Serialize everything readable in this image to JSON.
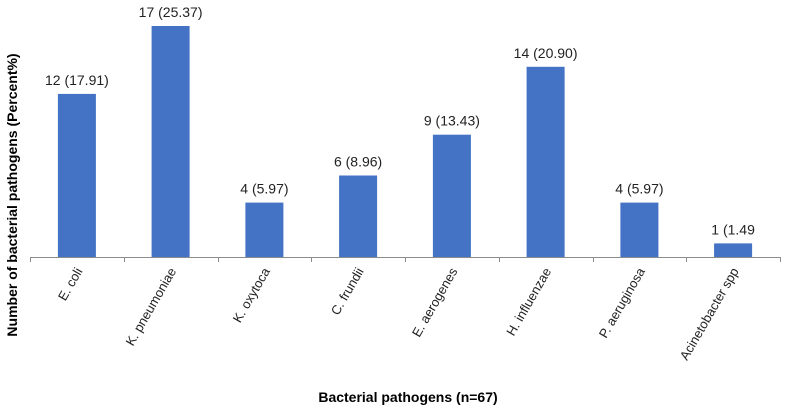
{
  "chart_data": {
    "type": "bar",
    "title": "",
    "xlabel": "Bacterial pathogens (n=67)",
    "ylabel": "Number of bacterial pathogens (Percent%)",
    "categories": [
      "E. coli",
      "K. pneumoniae",
      "K. oxytoca",
      "C. frundii",
      "E. aerogenes",
      "H. influenzae",
      "P. aeruginosa",
      "Acinetobacter spp"
    ],
    "values": [
      12,
      17,
      4,
      6,
      9,
      14,
      4,
      1
    ],
    "data_labels": [
      "12 (17.91)",
      "17 (25.37)",
      "4 (5.97)",
      "6 (8.96)",
      "9 (13.43)",
      "14 (20.90)",
      "4 (5.97)",
      "1 (1.49"
    ],
    "ylim": [
      0,
      17.6
    ],
    "grid": false,
    "legend": "none",
    "bar_color": "#4472c4"
  }
}
